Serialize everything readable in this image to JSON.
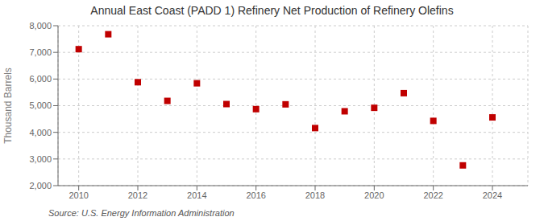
{
  "chart_data": {
    "type": "scatter",
    "title": "Annual East Coast (PADD 1) Refinery Net Production of Refinery Olefins",
    "y_label": "Thousand Barrels",
    "annotations": [
      "Source: U.S. Energy Information Administration"
    ],
    "x": [
      2010,
      2011,
      2012,
      2013,
      2014,
      2015,
      2016,
      2017,
      2018,
      2019,
      2020,
      2021,
      2022,
      2023,
      2024
    ],
    "values": [
      7120,
      7680,
      5880,
      5180,
      5840,
      5060,
      4870,
      5050,
      4160,
      4790,
      4920,
      5470,
      4430,
      2760,
      4560
    ],
    "color": "#c00000",
    "marker": "square",
    "xlim": [
      2009.3,
      2025.2
    ],
    "xticks": [
      2010,
      2012,
      2014,
      2016,
      2018,
      2020,
      2022,
      2024
    ],
    "ylim": [
      2000,
      8000
    ],
    "yticks": [
      {
        "value": 2000,
        "label": "2,000"
      },
      {
        "value": 3000,
        "label": "3,000"
      },
      {
        "value": 4000,
        "label": "4,000"
      },
      {
        "value": 5000,
        "label": "5,000"
      },
      {
        "value": 6000,
        "label": "6,000"
      },
      {
        "value": 7000,
        "label": "7,000"
      },
      {
        "value": 8000,
        "label": "8,000"
      }
    ],
    "grid": true
  }
}
